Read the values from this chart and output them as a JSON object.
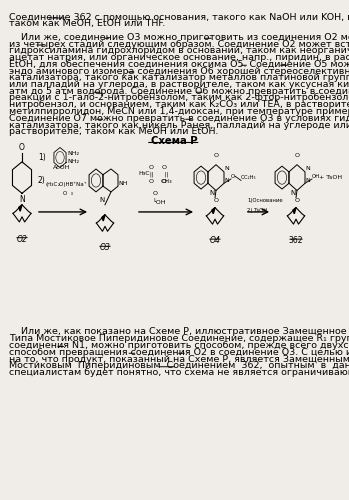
{
  "bg_color": "#f0ede8",
  "text_color": "#000000",
  "font_size": 6.8,
  "page_width": 3.49,
  "page_height": 5.0,
  "dpi": 100,
  "lines_top": [
    "Соединение 362 с помощью основания, такого как NaOH или KOH, в воде и растворителе,",
    "таком как MeOH, EtOH или THF.",
    "",
    "    Или же, соединение O3 можно приготовить из соединения O2 методом, состоящим",
    "из четырех стадий следующим образом. Соединение O2 может вступать в реакцию с",
    "гидроксиламина гидрохлоридом в основании, таком как неорганическое основание, напр.,",
    "ацетат натрия, или органическое основание, напр., пиридин, в растворителе, таком как",
    "EtOH, для обеспечения соединения оксима O5. Соединение O5 можно восстановить до",
    "эндо аминового изомера соединения O6 хорошей стереоселективности с помощью",
    "катализатора, такого как катализатор металлов платиновой группы, напр., оксида платины",
    "или палладий на углерода, в растворителе, таком как уксусная кислота, в атмосфере от 1",
    "атм до 5 атм водорода. Соединение O6 можно превратить в соединение O7 с помощью",
    "реакции с 1-гало-2-нитробензолом, таким как 2-фтор-нитробензол или 2-хлор-",
    "нитробензол, и основанием, таким как K₂CO₃ или TEA, в растворителе, таком как DMF, N-",
    "метилпирролидон, MeCN или 1,4-диоксан, при температуре примерно от 100°C до 110°C.",
    "Соединение O7 можно превратить в соединение O3 в условиях гидрирования с помощью",
    "катализатора, такого как никель Ранея, палладий на углероде или оксид платины, в",
    "растворителе, таком как MeOH или EtOH."
  ],
  "underlined_in_top": [
    {
      "line": 0,
      "words": [
        "362"
      ]
    },
    {
      "line": 3,
      "words": [
        "O3",
        "O2"
      ]
    },
    {
      "line": 4,
      "words": [
        "O2"
      ]
    },
    {
      "line": 7,
      "words": [
        "O5",
        "O5"
      ]
    },
    {
      "line": 8,
      "words": [
        "O6"
      ]
    },
    {
      "line": 11,
      "words": [
        "O6",
        "O7"
      ]
    },
    {
      "line": 15,
      "words": [
        "O7",
        "O3"
      ]
    }
  ],
  "lines_bottom": [
    "    Или же, как показано на Схеме P, иллюстративное Замещенное Хиноксалинового",
    "Типа Мостиковое Пиперидиновое Соединение, содержащее R₁ группу, образованную из",
    "соединения N1, можно приготовить способом, прежде всего двухстадийным, «one-pot»",
    "способом превращения соединения O2 в соединение O3. С целью иллюстрации, не смотря",
    "на то, что продукт, показанный на Схеме P, является Замещенным Хиноксалинового Типа",
    "Мостиковым  Пиперидиновым  Соединением  362,  опытным  в  данной  области",
    "специалистам будет понятно, что схема не является ограничивающей и применима к"
  ]
}
